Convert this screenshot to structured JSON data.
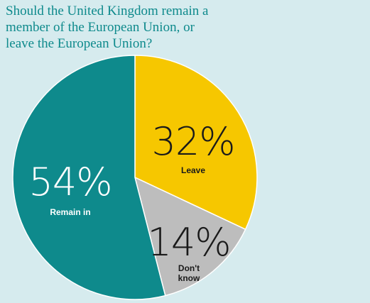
{
  "chart_data": {
    "type": "pie",
    "title_lines": [
      "Should the United Kingdom remain a",
      "member of the European Union, or",
      "leave the European Union?"
    ],
    "slices": [
      {
        "label": "Leave",
        "label_lines": [
          "Leave"
        ],
        "value": 32,
        "value_label": "32%",
        "color": "#f6c700",
        "text_color": "#1a1a1a"
      },
      {
        "label": "Don't know",
        "label_lines": [
          "Don't",
          "know"
        ],
        "value": 14,
        "value_label": "14%",
        "color": "#bdbdbd",
        "text_color": "#1a1a1a"
      },
      {
        "label": "Remain in",
        "label_lines": [
          "Remain in"
        ],
        "value": 54,
        "value_label": "54%",
        "color": "#0e8a8c",
        "text_color": "#ffffff"
      }
    ],
    "start_angle_deg": 0,
    "direction": "clockwise",
    "slice_border_color": "#ffffff",
    "background_color": "#d6ebee"
  }
}
